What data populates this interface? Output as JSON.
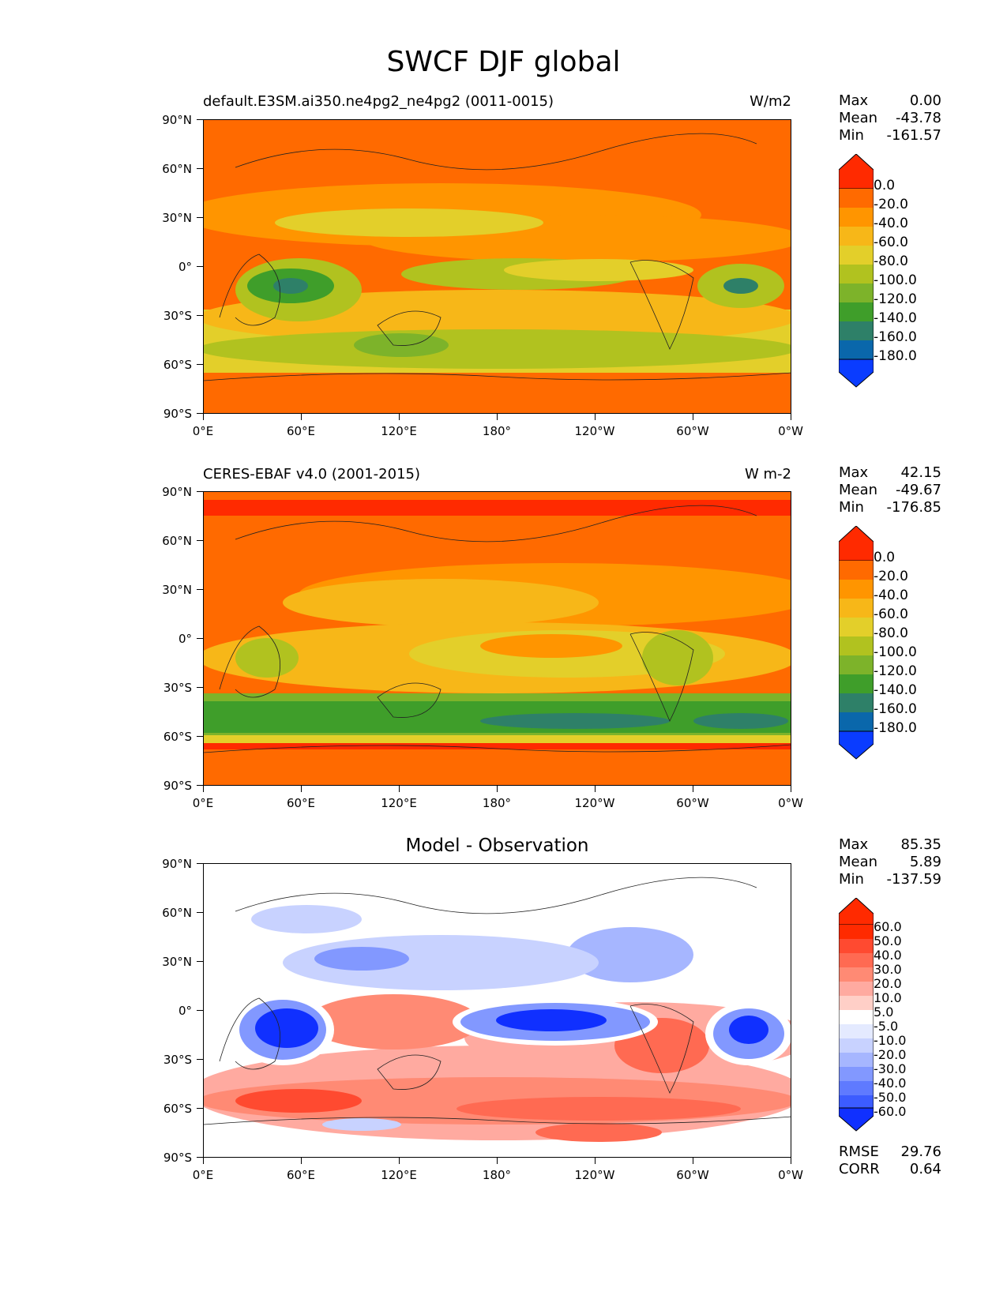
{
  "title": "SWCF DJF global",
  "axes": {
    "y_ticks": [
      "90°N",
      "60°N",
      "30°N",
      "0°",
      "30°S",
      "60°S",
      "90°S"
    ],
    "x_ticks": [
      "0°E",
      "60°E",
      "120°E",
      "180°",
      "120°W",
      "60°W",
      "0°W"
    ]
  },
  "panels": [
    {
      "title": "default.E3SM.ai350.ne4pg2_ne4pg2 (0011-0015)",
      "units": "W/m2",
      "stats": {
        "max_label": "Max",
        "max": "0.00",
        "mean_label": "Mean",
        "mean": "-43.78",
        "min_label": "Min",
        "min": "-161.57"
      },
      "levels": [
        "0.0",
        "-20.0",
        "-40.0",
        "-60.0",
        "-80.0",
        "-100.0",
        "-120.0",
        "-140.0",
        "-160.0",
        "-180.0"
      ]
    },
    {
      "title": "CERES-EBAF v4.0 (2001-2015)",
      "units": "W m-2",
      "stats": {
        "max_label": "Max",
        "max": "42.15",
        "mean_label": "Mean",
        "mean": "-49.67",
        "min_label": "Min",
        "min": "-176.85"
      },
      "levels": [
        "0.0",
        "-20.0",
        "-40.0",
        "-60.0",
        "-80.0",
        "-100.0",
        "-120.0",
        "-140.0",
        "-160.0",
        "-180.0"
      ]
    },
    {
      "title": "Model - Observation",
      "units": "",
      "stats": {
        "max_label": "Max",
        "max": "85.35",
        "mean_label": "Mean",
        "mean": "5.89",
        "min_label": "Min",
        "min": "-137.59"
      },
      "levels": [
        "60.0",
        "50.0",
        "40.0",
        "30.0",
        "20.0",
        "10.0",
        "5.0",
        "-5.0",
        "-10.0",
        "-20.0",
        "-30.0",
        "-40.0",
        "-50.0",
        "-60.0"
      ],
      "rmse_label": "RMSE",
      "rmse": "29.76",
      "corr_label": "CORR",
      "corr": "0.64"
    }
  ],
  "colors": {
    "field_scale": [
      "#ff2a00",
      "#ff6a00",
      "#ff9500",
      "#f7b718",
      "#e3cf2a",
      "#b1c21f",
      "#7db32a",
      "#3f9e2a",
      "#2e8068",
      "#0a67ab",
      "#0a3cff"
    ],
    "diff_scale": [
      "#ff2a00",
      "#ff4a30",
      "#ff6a52",
      "#ff8a74",
      "#ffaaa0",
      "#ffcfc7",
      "#ffecea",
      "#ffffff",
      "#e4eaff",
      "#c8d2ff",
      "#a6b6ff",
      "#8298ff",
      "#5f7aff",
      "#3c5cff",
      "#1030ff"
    ]
  }
}
